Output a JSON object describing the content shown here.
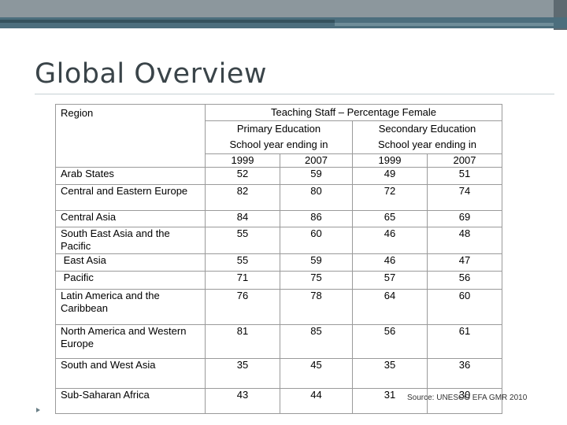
{
  "slide": {
    "title": "Global Overview",
    "source": "Source: UNESCO EFA GMR 2010"
  },
  "table": {
    "region_header": "Region",
    "group_header": "Teaching Staff – Percentage Female",
    "primary_header": "Primary Education",
    "secondary_header": "Secondary Education",
    "school_year_primary": "School year ending in",
    "school_year_secondary": "School year ending in",
    "years": [
      "1999",
      "2007",
      "1999",
      "2007"
    ],
    "rows": [
      {
        "region": "Arab States",
        "values": [
          "52",
          "59",
          "49",
          "51"
        ]
      },
      {
        "region": "Central and Eastern Europe",
        "values": [
          "82",
          "80",
          "72",
          "74"
        ]
      },
      {
        "region": "Central Asia",
        "values": [
          "84",
          "86",
          "65",
          "69"
        ]
      },
      {
        "region": "South East Asia and the Pacific",
        "values": [
          "55",
          "60",
          "46",
          "48"
        ]
      },
      {
        "region": " East Asia",
        "values": [
          "55",
          "59",
          "46",
          "47"
        ]
      },
      {
        "region": " Pacific",
        "values": [
          "71",
          "75",
          "57",
          "56"
        ]
      },
      {
        "region": "Latin America and the Caribbean",
        "values": [
          "76",
          "78",
          "64",
          "60"
        ]
      },
      {
        "region": "North America and Western Europe",
        "values": [
          "81",
          "85",
          "56",
          "61"
        ]
      },
      {
        "region": "South and West Asia",
        "values": [
          "35",
          "45",
          "35",
          "36"
        ]
      },
      {
        "region": "Sub-Saharan Africa",
        "values": [
          "43",
          "44",
          "31",
          "30"
        ]
      }
    ]
  }
}
